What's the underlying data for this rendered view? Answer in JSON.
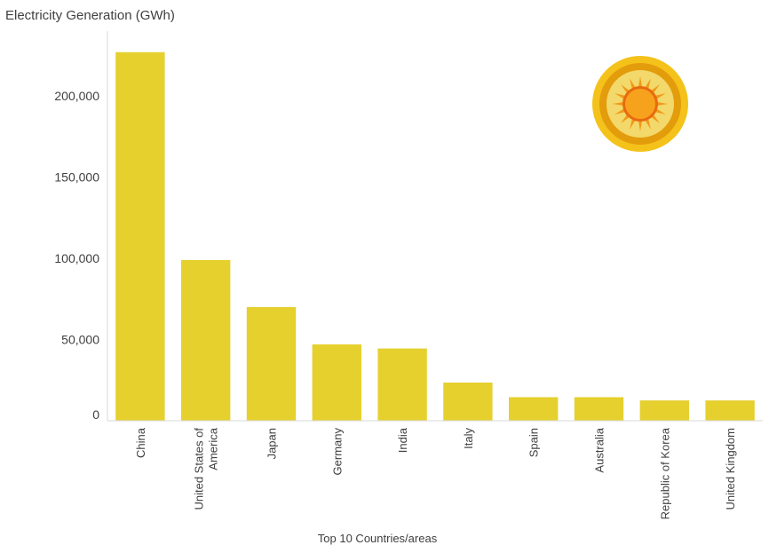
{
  "chart_data": {
    "type": "bar",
    "title": "",
    "ylabel": "Electricity Generation (GWh)",
    "xlabel": "Top 10 Countries/areas",
    "categories": [
      [
        "China"
      ],
      [
        "United States of",
        "America"
      ],
      [
        "Japan"
      ],
      [
        "Germany"
      ],
      [
        "India"
      ],
      [
        "Italy"
      ],
      [
        "Spain"
      ],
      [
        "Australia"
      ],
      [
        "Republic of Korea"
      ],
      [
        "United Kingdom"
      ]
    ],
    "values": [
      227000,
      99000,
      70000,
      47000,
      44500,
      23500,
      14500,
      14500,
      12500,
      12500
    ],
    "ylim": [
      0,
      240000
    ],
    "yticks": [
      0,
      50000,
      100000,
      150000,
      200000
    ],
    "ytick_labels": [
      "0",
      "50,000",
      "100,000",
      "150,000",
      "200,000"
    ],
    "grid": false,
    "bar_color": "#e5d02e",
    "axis_color": "#d9d9d9",
    "icon": "sun-icon"
  }
}
